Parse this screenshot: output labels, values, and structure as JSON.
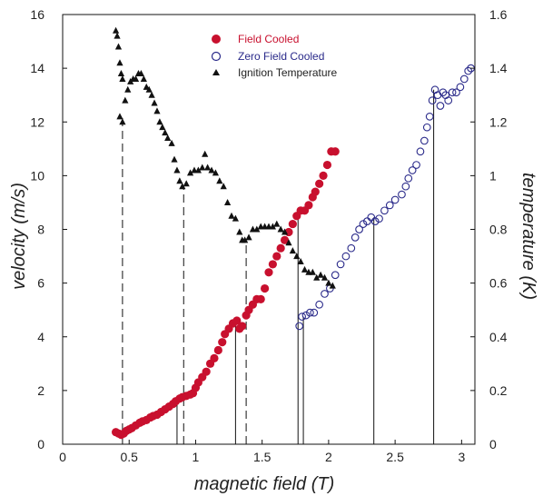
{
  "chart_data": {
    "type": "scatter",
    "xlabel": "magnetic field (T)",
    "ylabel": "velocity (m/s)",
    "y2label": "temperature (K)",
    "xlim": [
      0,
      3.1
    ],
    "ylim": [
      0,
      16
    ],
    "y2lim": [
      0,
      1.6
    ],
    "xticks": [
      "0",
      "0.5",
      "1",
      "1.5",
      "2",
      "2.5",
      "3"
    ],
    "xtick_values": [
      0,
      0.5,
      1,
      1.5,
      2,
      2.5,
      3
    ],
    "yticks": [
      "0",
      "2",
      "4",
      "6",
      "8",
      "10",
      "12",
      "14",
      "16"
    ],
    "ytick_values": [
      0,
      2,
      4,
      6,
      8,
      10,
      12,
      14,
      16
    ],
    "y2ticks": [
      "0",
      "0.2",
      "0.4",
      "0.6",
      "0.8",
      "1",
      "1.2",
      "1.4",
      "1.6"
    ],
    "y2tick_values": [
      0,
      0.2,
      0.4,
      0.6,
      0.8,
      1,
      1.2,
      1.4,
      1.6
    ],
    "grid": false,
    "legend_position": "top-center",
    "series": [
      {
        "name": "Field Cooled",
        "axis": "left",
        "marker": "filled-circle",
        "color": "#c8102e",
        "points": [
          [
            0.4,
            0.45
          ],
          [
            0.42,
            0.4
          ],
          [
            0.44,
            0.35
          ],
          [
            0.46,
            0.4
          ],
          [
            0.48,
            0.5
          ],
          [
            0.5,
            0.55
          ],
          [
            0.52,
            0.6
          ],
          [
            0.55,
            0.7
          ],
          [
            0.58,
            0.8
          ],
          [
            0.6,
            0.85
          ],
          [
            0.63,
            0.9
          ],
          [
            0.66,
            1.0
          ],
          [
            0.68,
            1.05
          ],
          [
            0.71,
            1.1
          ],
          [
            0.74,
            1.2
          ],
          [
            0.77,
            1.3
          ],
          [
            0.8,
            1.4
          ],
          [
            0.83,
            1.5
          ],
          [
            0.85,
            1.6
          ],
          [
            0.88,
            1.7
          ],
          [
            0.9,
            1.75
          ],
          [
            0.93,
            1.8
          ],
          [
            0.96,
            1.85
          ],
          [
            0.98,
            1.9
          ],
          [
            1.0,
            2.1
          ],
          [
            1.02,
            2.3
          ],
          [
            1.05,
            2.5
          ],
          [
            1.08,
            2.7
          ],
          [
            1.11,
            3.0
          ],
          [
            1.14,
            3.2
          ],
          [
            1.17,
            3.5
          ],
          [
            1.2,
            3.8
          ],
          [
            1.22,
            4.1
          ],
          [
            1.25,
            4.3
          ],
          [
            1.28,
            4.5
          ],
          [
            1.31,
            4.6
          ],
          [
            1.33,
            4.3
          ],
          [
            1.35,
            4.4
          ],
          [
            1.38,
            4.8
          ],
          [
            1.4,
            5.0
          ],
          [
            1.43,
            5.2
          ],
          [
            1.46,
            5.4
          ],
          [
            1.49,
            5.4
          ],
          [
            1.52,
            5.8
          ],
          [
            1.55,
            6.4
          ],
          [
            1.58,
            6.7
          ],
          [
            1.61,
            7.0
          ],
          [
            1.64,
            7.3
          ],
          [
            1.67,
            7.6
          ],
          [
            1.7,
            7.9
          ],
          [
            1.73,
            8.2
          ],
          [
            1.76,
            8.5
          ],
          [
            1.79,
            8.7
          ],
          [
            1.82,
            8.7
          ],
          [
            1.85,
            8.9
          ],
          [
            1.88,
            9.2
          ],
          [
            1.9,
            9.4
          ],
          [
            1.93,
            9.7
          ],
          [
            1.96,
            10.0
          ],
          [
            1.99,
            10.4
          ],
          [
            2.02,
            10.9
          ],
          [
            2.05,
            10.9
          ]
        ]
      },
      {
        "name": "Zero Field Cooled",
        "axis": "left",
        "marker": "open-circle",
        "color": "#2a2a8a",
        "points": [
          [
            1.78,
            4.4
          ],
          [
            1.8,
            4.75
          ],
          [
            1.83,
            4.8
          ],
          [
            1.86,
            4.9
          ],
          [
            1.89,
            4.9
          ],
          [
            1.93,
            5.2
          ],
          [
            1.97,
            5.6
          ],
          [
            2.01,
            5.8
          ],
          [
            2.05,
            6.3
          ],
          [
            2.09,
            6.7
          ],
          [
            2.13,
            7.0
          ],
          [
            2.17,
            7.3
          ],
          [
            2.2,
            7.7
          ],
          [
            2.23,
            8.0
          ],
          [
            2.26,
            8.2
          ],
          [
            2.29,
            8.3
          ],
          [
            2.32,
            8.45
          ],
          [
            2.35,
            8.3
          ],
          [
            2.38,
            8.4
          ],
          [
            2.42,
            8.7
          ],
          [
            2.46,
            8.9
          ],
          [
            2.5,
            9.1
          ],
          [
            2.55,
            9.3
          ],
          [
            2.58,
            9.6
          ],
          [
            2.6,
            9.9
          ],
          [
            2.63,
            10.2
          ],
          [
            2.66,
            10.4
          ],
          [
            2.69,
            10.9
          ],
          [
            2.72,
            11.3
          ],
          [
            2.74,
            11.8
          ],
          [
            2.76,
            12.2
          ],
          [
            2.78,
            12.8
          ],
          [
            2.8,
            13.2
          ],
          [
            2.82,
            13.0
          ],
          [
            2.84,
            12.6
          ],
          [
            2.86,
            13.1
          ],
          [
            2.88,
            13.0
          ],
          [
            2.9,
            12.8
          ],
          [
            2.93,
            13.1
          ],
          [
            2.96,
            13.1
          ],
          [
            2.99,
            13.3
          ],
          [
            3.02,
            13.6
          ],
          [
            3.05,
            13.9
          ],
          [
            3.07,
            14.0
          ]
        ]
      },
      {
        "name": "Ignition Temperature",
        "axis": "right",
        "marker": "filled-triangle",
        "color": "#111111",
        "points": [
          [
            0.4,
            1.54
          ],
          [
            0.41,
            1.52
          ],
          [
            0.42,
            1.48
          ],
          [
            0.43,
            1.42
          ],
          [
            0.44,
            1.38
          ],
          [
            0.45,
            1.36
          ],
          [
            0.43,
            1.22
          ],
          [
            0.45,
            1.2
          ],
          [
            0.47,
            1.28
          ],
          [
            0.49,
            1.32
          ],
          [
            0.51,
            1.35
          ],
          [
            0.53,
            1.36
          ],
          [
            0.55,
            1.36
          ],
          [
            0.57,
            1.38
          ],
          [
            0.59,
            1.38
          ],
          [
            0.61,
            1.36
          ],
          [
            0.63,
            1.33
          ],
          [
            0.65,
            1.32
          ],
          [
            0.67,
            1.3
          ],
          [
            0.69,
            1.27
          ],
          [
            0.71,
            1.24
          ],
          [
            0.73,
            1.2
          ],
          [
            0.75,
            1.18
          ],
          [
            0.77,
            1.16
          ],
          [
            0.79,
            1.14
          ],
          [
            0.82,
            1.12
          ],
          [
            0.84,
            1.06
          ],
          [
            0.86,
            1.02
          ],
          [
            0.88,
            0.98
          ],
          [
            0.9,
            0.96
          ],
          [
            0.93,
            0.97
          ],
          [
            0.96,
            1.01
          ],
          [
            0.99,
            1.02
          ],
          [
            1.02,
            1.02
          ],
          [
            1.05,
            1.03
          ],
          [
            1.07,
            1.08
          ],
          [
            1.09,
            1.03
          ],
          [
            1.12,
            1.02
          ],
          [
            1.15,
            1.01
          ],
          [
            1.18,
            0.98
          ],
          [
            1.21,
            0.96
          ],
          [
            1.24,
            0.9
          ],
          [
            1.27,
            0.85
          ],
          [
            1.3,
            0.84
          ],
          [
            1.33,
            0.79
          ],
          [
            1.35,
            0.76
          ],
          [
            1.37,
            0.76
          ],
          [
            1.4,
            0.77
          ],
          [
            1.43,
            0.8
          ],
          [
            1.46,
            0.8
          ],
          [
            1.49,
            0.81
          ],
          [
            1.52,
            0.81
          ],
          [
            1.55,
            0.81
          ],
          [
            1.58,
            0.81
          ],
          [
            1.61,
            0.82
          ],
          [
            1.64,
            0.8
          ],
          [
            1.67,
            0.79
          ],
          [
            1.7,
            0.75
          ],
          [
            1.73,
            0.72
          ],
          [
            1.76,
            0.7
          ],
          [
            1.79,
            0.68
          ],
          [
            1.82,
            0.65
          ],
          [
            1.85,
            0.64
          ],
          [
            1.88,
            0.64
          ],
          [
            1.91,
            0.62
          ],
          [
            1.94,
            0.63
          ],
          [
            1.97,
            0.62
          ],
          [
            2.0,
            0.6
          ],
          [
            2.03,
            0.59
          ]
        ]
      }
    ],
    "reference_lines": [
      {
        "x": 0.45,
        "from": 0,
        "to": 12.2,
        "style": "dashed"
      },
      {
        "x": 0.91,
        "from": 0,
        "to": 9.6,
        "style": "dashed"
      },
      {
        "x": 0.86,
        "from": 0,
        "to": 1.7,
        "style": "solid"
      },
      {
        "x": 1.3,
        "from": 0,
        "to": 4.5,
        "style": "solid"
      },
      {
        "x": 1.38,
        "from": 0,
        "to": 7.6,
        "style": "dashed"
      },
      {
        "x": 1.77,
        "from": 0,
        "to": 8.5,
        "style": "solid"
      },
      {
        "x": 1.81,
        "from": 0,
        "to": 4.75,
        "style": "solid"
      },
      {
        "x": 2.34,
        "from": 0,
        "to": 8.45,
        "style": "solid"
      },
      {
        "x": 2.79,
        "from": 0,
        "to": 13.2,
        "style": "solid"
      }
    ]
  }
}
